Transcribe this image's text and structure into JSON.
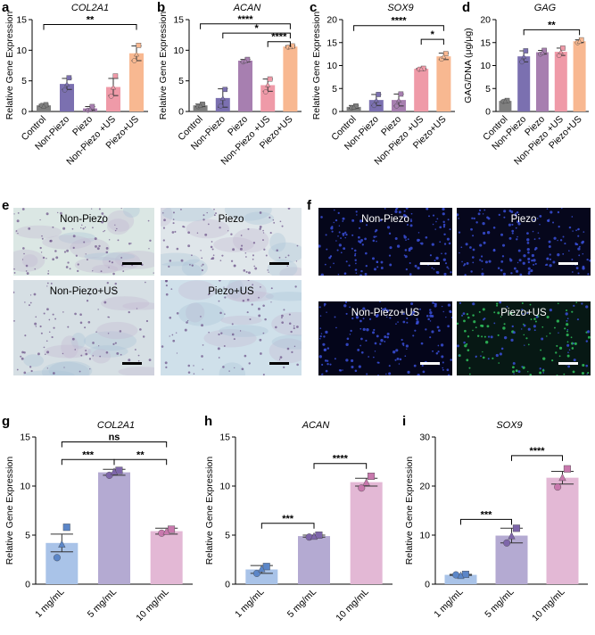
{
  "panel_letters": {
    "a": "a",
    "b": "b",
    "c": "c",
    "d": "d",
    "e": "e",
    "f": "f",
    "g": "g",
    "h": "h",
    "i": "i"
  },
  "colors": {
    "control": "#7f7f7f",
    "non_piezo": "#7b70b0",
    "piezo": "#a77fb0",
    "non_piezo_us": "#ef9aa8",
    "piezo_us": "#f8b891",
    "mg1": "#a9c3e8",
    "mg5": "#b4aad2",
    "mg10": "#e3b8d5",
    "dot1": "#5b86c8",
    "dot5": "#7e66aa",
    "dot10": "#c878ad"
  },
  "micrographs": {
    "toluidine": [
      {
        "label": "Non-Piezo",
        "bg": "#dbe7e4"
      },
      {
        "label": "Piezo",
        "bg": "#dfe6ea"
      },
      {
        "label": "Non-Piezo+US",
        "bg": "#d6dfe4"
      },
      {
        "label": "Piezo+US",
        "bg": "#cfe0ea"
      }
    ],
    "fluorescence": [
      {
        "label": "Non-Piezo",
        "bg": "#05061a"
      },
      {
        "label": "Piezo",
        "bg": "#06071c"
      },
      {
        "label": "Non-Piezo+US",
        "bg": "#04051a"
      },
      {
        "label": "Piezo+US",
        "bg": "#071814"
      }
    ]
  },
  "chart_data": [
    {
      "panel": "a",
      "type": "bar",
      "title": "COL2A1",
      "ylabel": "Relative Gene Expression",
      "categories": [
        "Control",
        "Non-Piezo",
        "Piezo",
        "Non-Piezo +US",
        "Piezo+US"
      ],
      "values": [
        1.0,
        4.5,
        0.5,
        4.0,
        9.5
      ],
      "errors": [
        0.15,
        0.9,
        0.3,
        1.4,
        1.2
      ],
      "points": [
        [
          1.0,
          1.1,
          0.9
        ],
        [
          3.5,
          5.5,
          4.5
        ],
        [
          0.2,
          0.8,
          0.4
        ],
        [
          2.5,
          5.8,
          4.0
        ],
        [
          8.3,
          10.8,
          9.4
        ]
      ],
      "ylim": [
        0,
        15
      ],
      "yticks": [
        0,
        5,
        10,
        15
      ],
      "significance": [
        {
          "from": 0,
          "to": 4,
          "label": "**",
          "level": 14.2
        }
      ]
    },
    {
      "panel": "b",
      "type": "bar",
      "title": "ACAN",
      "ylabel": "Relative Gene Expression",
      "categories": [
        "Control",
        "Non-Piezo",
        "Piezo",
        "Non-Piezo +US",
        "Piezo+US"
      ],
      "values": [
        1.0,
        2.2,
        8.3,
        4.3,
        10.6
      ],
      "errors": [
        0.2,
        1.5,
        0.2,
        1.0,
        0.15
      ],
      "points": [
        [
          0.8,
          1.2,
          1.0
        ],
        [
          0.9,
          3.6,
          2.2
        ],
        [
          8.1,
          8.5,
          8.3
        ],
        [
          3.2,
          5.3,
          4.4
        ],
        [
          10.5,
          10.7,
          10.6
        ]
      ],
      "ylim": [
        0,
        15
      ],
      "yticks": [
        0,
        5,
        10,
        15
      ],
      "significance": [
        {
          "from": 0,
          "to": 4,
          "label": "****",
          "level": 14.3
        },
        {
          "from": 1,
          "to": 4,
          "label": "*",
          "level": 12.8
        },
        {
          "from": 3,
          "to": 4,
          "label": "****",
          "level": 11.4
        }
      ]
    },
    {
      "panel": "c",
      "type": "bar",
      "title": "SOX9",
      "ylabel": "Relative Gene Expression",
      "categories": [
        "Control",
        "Non-Piezo",
        "Piezo",
        "Non-Piezo +US",
        "Piezo+US"
      ],
      "values": [
        1.0,
        2.5,
        2.5,
        9.3,
        12.0
      ],
      "errors": [
        0.3,
        1.2,
        1.3,
        0.1,
        0.7
      ],
      "points": [
        [
          0.8,
          1.2,
          1.0
        ],
        [
          1.3,
          3.7,
          2.5
        ],
        [
          1.2,
          3.8,
          2.5
        ],
        [
          9.2,
          9.4,
          9.3
        ],
        [
          11.4,
          12.6,
          12.0
        ]
      ],
      "ylim": [
        0,
        20
      ],
      "yticks": [
        0,
        5,
        10,
        15,
        20
      ],
      "significance": [
        {
          "from": 0,
          "to": 4,
          "label": "****",
          "level": 18.7
        },
        {
          "from": 3,
          "to": 4,
          "label": "*",
          "level": 15.7
        }
      ]
    },
    {
      "panel": "d",
      "type": "bar",
      "title": "GAG",
      "ylabel": "GAG/DNA (μg/μg)",
      "categories": [
        "Control",
        "Non-Piezo",
        "Piezo",
        "Non-Piezo +US",
        "Piezo+US"
      ],
      "values": [
        2.3,
        12.0,
        12.9,
        13.0,
        15.3
      ],
      "errors": [
        0.15,
        1.2,
        0.4,
        0.8,
        0.3
      ],
      "points": [
        [
          2.2,
          2.4,
          2.3
        ],
        [
          10.8,
          13.2,
          12.0
        ],
        [
          12.5,
          13.3,
          12.9
        ],
        [
          12.2,
          13.8,
          13.0
        ],
        [
          15.0,
          15.6,
          15.3
        ]
      ],
      "ylim": [
        0,
        20
      ],
      "yticks": [
        0,
        5,
        10,
        15,
        20
      ],
      "significance": [
        {
          "from": 1,
          "to": 4,
          "label": "**",
          "level": 17.8
        }
      ]
    },
    {
      "panel": "g",
      "type": "bar",
      "title": "COL2A1",
      "ylabel": "Relative Gene Expression",
      "categories": [
        "1 mg/mL",
        "5 mg/mL",
        "10 mg/mL"
      ],
      "values": [
        4.2,
        11.4,
        5.4
      ],
      "errors": [
        0.9,
        0.3,
        0.3
      ],
      "points": [
        [
          2.7,
          5.8,
          4.1
        ],
        [
          11.1,
          11.6,
          11.5
        ],
        [
          5.2,
          5.6,
          5.4
        ]
      ],
      "ylim": [
        0,
        15
      ],
      "yticks": [
        0,
        5,
        10,
        15
      ],
      "significance": [
        {
          "from": 0,
          "to": 2,
          "label": "ns",
          "level": 14.5
        },
        {
          "from": 0,
          "to": 1,
          "label": "***",
          "level": 12.7
        },
        {
          "from": 1,
          "to": 2,
          "label": "**",
          "level": 12.7
        }
      ]
    },
    {
      "panel": "h",
      "type": "bar",
      "title": "ACAN",
      "ylabel": "Relative Gene Expression",
      "categories": [
        "1 mg/mL",
        "5 mg/mL",
        "10 mg/mL"
      ],
      "values": [
        1.5,
        4.9,
        10.4
      ],
      "errors": [
        0.4,
        0.1,
        0.4
      ],
      "points": [
        [
          1.1,
          1.8,
          1.6
        ],
        [
          4.8,
          5.0,
          4.9
        ],
        [
          9.8,
          11.0,
          10.4
        ]
      ],
      "ylim": [
        0,
        15
      ],
      "yticks": [
        0,
        5,
        10,
        15
      ],
      "significance": [
        {
          "from": 0,
          "to": 1,
          "label": "***",
          "level": 6.2
        },
        {
          "from": 1,
          "to": 2,
          "label": "****",
          "level": 12.3
        }
      ]
    },
    {
      "panel": "i",
      "type": "bar",
      "title": "SOX9",
      "ylabel": "Relative Gene Expression",
      "categories": [
        "1 mg/mL",
        "5 mg/mL",
        "10 mg/mL"
      ],
      "values": [
        1.9,
        9.9,
        21.7
      ],
      "errors": [
        0.1,
        1.5,
        1.3
      ],
      "points": [
        [
          1.9,
          2.0,
          1.8
        ],
        [
          8.4,
          11.4,
          9.9
        ],
        [
          19.8,
          23.5,
          21.8
        ]
      ],
      "ylim": [
        0,
        30
      ],
      "yticks": [
        0,
        10,
        20,
        30
      ],
      "significance": [
        {
          "from": 0,
          "to": 1,
          "label": "***",
          "level": 13.2
        },
        {
          "from": 1,
          "to": 2,
          "label": "****",
          "level": 26.2
        }
      ]
    }
  ]
}
